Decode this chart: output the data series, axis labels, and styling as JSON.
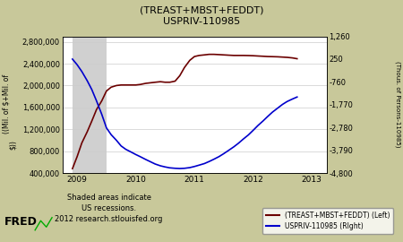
{
  "title1": "(TREAST+MBST+FEDDT)",
  "title2": "USPRIV-110985",
  "bg_color": "#c8c89a",
  "plot_bg_color": "#ffffff",
  "recession_color": "#d0d0d0",
  "recession_start": 2008.92,
  "recession_end": 2009.5,
  "left_ylabel1": "((Mil. of $+Mil. of",
  "left_ylabel2": "$))",
  "right_ylabel": "(Thous. of Persons-110985)",
  "xlim": [
    2008.75,
    2013.25
  ],
  "ylim_left": [
    400000,
    2900000
  ],
  "ylim_right": [
    -4800,
    1260
  ],
  "left_yticks": [
    400000,
    800000,
    1200000,
    1600000,
    2000000,
    2400000,
    2800000
  ],
  "right_yticks": [
    1260,
    250,
    -760,
    -1770,
    -2780,
    -3790,
    -4800
  ],
  "xticks": [
    2009,
    2010,
    2011,
    2012,
    2013
  ],
  "line1_color": "#6b0000",
  "line2_color": "#0000cc",
  "line1_label": "(TREAST+MBST+FEDDT) (Left)",
  "line2_label": "USPRIV-110985 (RIght)",
  "footer_left": "Shaded areas indicate\nUS recessions.\n2012 research.stlouisfed.org",
  "qe_x": [
    2008.92,
    2009.0,
    2009.08,
    2009.17,
    2009.25,
    2009.33,
    2009.42,
    2009.5,
    2009.58,
    2009.67,
    2009.75,
    2009.83,
    2009.92,
    2010.0,
    2010.08,
    2010.17,
    2010.25,
    2010.33,
    2010.42,
    2010.5,
    2010.58,
    2010.67,
    2010.75,
    2010.83,
    2010.92,
    2011.0,
    2011.08,
    2011.17,
    2011.25,
    2011.33,
    2011.42,
    2011.5,
    2011.58,
    2011.67,
    2011.75,
    2011.83,
    2011.92,
    2012.0,
    2012.08,
    2012.17,
    2012.25,
    2012.33,
    2012.42,
    2012.5,
    2012.58,
    2012.67,
    2012.75
  ],
  "qe_y": [
    480000,
    700000,
    950000,
    1150000,
    1350000,
    1560000,
    1720000,
    1900000,
    1970000,
    2000000,
    2010000,
    2010000,
    2010000,
    2010000,
    2020000,
    2040000,
    2050000,
    2060000,
    2070000,
    2060000,
    2060000,
    2080000,
    2180000,
    2330000,
    2460000,
    2530000,
    2550000,
    2560000,
    2570000,
    2570000,
    2565000,
    2560000,
    2555000,
    2550000,
    2550000,
    2550000,
    2548000,
    2545000,
    2540000,
    2535000,
    2530000,
    2528000,
    2525000,
    2520000,
    2515000,
    2505000,
    2490000
  ],
  "priv_x": [
    2008.92,
    2009.0,
    2009.08,
    2009.17,
    2009.25,
    2009.33,
    2009.42,
    2009.5,
    2009.58,
    2009.67,
    2009.75,
    2009.83,
    2009.92,
    2010.0,
    2010.08,
    2010.17,
    2010.25,
    2010.33,
    2010.42,
    2010.5,
    2010.58,
    2010.67,
    2010.75,
    2010.83,
    2010.92,
    2011.0,
    2011.08,
    2011.17,
    2011.25,
    2011.33,
    2011.42,
    2011.5,
    2011.58,
    2011.67,
    2011.75,
    2011.83,
    2011.92,
    2012.0,
    2012.08,
    2012.17,
    2012.25,
    2012.33,
    2012.42,
    2012.5,
    2012.58,
    2012.67,
    2012.75
  ],
  "priv_y": [
    250,
    0,
    -300,
    -700,
    -1100,
    -1600,
    -2200,
    -2800,
    -3100,
    -3350,
    -3600,
    -3750,
    -3870,
    -3980,
    -4080,
    -4200,
    -4300,
    -4400,
    -4480,
    -4530,
    -4570,
    -4590,
    -4600,
    -4590,
    -4560,
    -4510,
    -4450,
    -4380,
    -4290,
    -4190,
    -4070,
    -3940,
    -3800,
    -3640,
    -3480,
    -3300,
    -3110,
    -2910,
    -2700,
    -2490,
    -2290,
    -2100,
    -1920,
    -1760,
    -1630,
    -1520,
    -1430
  ]
}
